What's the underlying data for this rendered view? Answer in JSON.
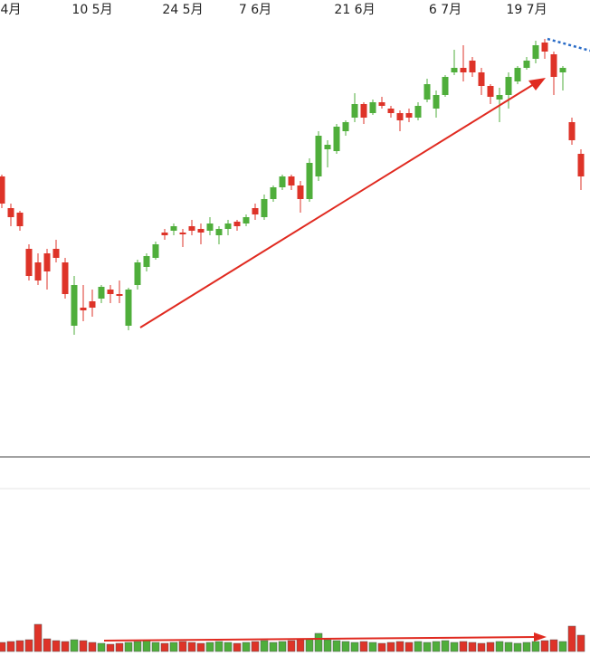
{
  "chart_data": {
    "type": "candlestick",
    "categories": [
      null,
      "4月",
      null,
      null,
      null,
      null,
      null,
      null,
      null,
      null,
      "10 5月",
      null,
      null,
      null,
      null,
      null,
      null,
      null,
      null,
      null,
      "24 5月",
      null,
      null,
      null,
      null,
      null,
      null,
      null,
      "7 6月",
      null,
      null,
      null,
      null,
      null,
      null,
      null,
      null,
      null,
      null,
      "21 6月",
      null,
      null,
      null,
      null,
      null,
      null,
      null,
      null,
      null,
      "6 7月",
      null,
      null,
      null,
      null,
      null,
      null,
      null,
      null,
      "19 7月",
      null,
      null,
      null,
      null,
      null,
      null
    ],
    "open": [
      310,
      275,
      270,
      230,
      215,
      225,
      230,
      215,
      145,
      165,
      172,
      175,
      185,
      180,
      145,
      190,
      210,
      220,
      248,
      250,
      248,
      255,
      252,
      250,
      245,
      252,
      260,
      258,
      275,
      265,
      285,
      298,
      310,
      300,
      285,
      310,
      340,
      338,
      360,
      375,
      390,
      380,
      392,
      385,
      380,
      380,
      375,
      395,
      385,
      400,
      425,
      430,
      438,
      425,
      410,
      395,
      400,
      415,
      430,
      440,
      458,
      445,
      425,
      370,
      335
    ],
    "high": [
      312,
      280,
      272,
      235,
      225,
      230,
      240,
      220,
      200,
      190,
      185,
      190,
      190,
      195,
      187,
      218,
      225,
      238,
      252,
      258,
      252,
      262,
      258,
      265,
      255,
      262,
      262,
      268,
      280,
      290,
      300,
      312,
      312,
      305,
      330,
      360,
      350,
      368,
      372,
      402,
      392,
      395,
      398,
      388,
      383,
      385,
      392,
      418,
      405,
      422,
      450,
      455,
      442,
      430,
      412,
      408,
      425,
      432,
      442,
      460,
      462,
      448,
      432,
      375,
      340
    ],
    "low": [
      275,
      255,
      250,
      195,
      190,
      185,
      215,
      175,
      135,
      150,
      155,
      170,
      170,
      170,
      140,
      185,
      205,
      218,
      240,
      245,
      232,
      245,
      235,
      245,
      235,
      245,
      250,
      255,
      262,
      262,
      282,
      295,
      295,
      270,
      282,
      305,
      320,
      335,
      355,
      370,
      368,
      378,
      385,
      375,
      360,
      370,
      372,
      392,
      375,
      398,
      422,
      415,
      420,
      400,
      390,
      370,
      385,
      412,
      428,
      435,
      440,
      400,
      405,
      345,
      295
    ],
    "close": [
      280,
      265,
      255,
      200,
      195,
      205,
      220,
      180,
      190,
      162,
      165,
      188,
      180,
      178,
      185,
      215,
      222,
      235,
      245,
      255,
      246,
      250,
      248,
      258,
      252,
      258,
      255,
      265,
      268,
      285,
      298,
      310,
      300,
      285,
      325,
      355,
      345,
      365,
      370,
      390,
      375,
      392,
      388,
      380,
      372,
      375,
      388,
      412,
      400,
      420,
      430,
      425,
      425,
      410,
      398,
      400,
      420,
      430,
      438,
      455,
      448,
      420,
      430,
      350,
      310
    ],
    "volume": [
      10,
      11,
      12,
      13,
      30,
      14,
      12,
      11,
      13,
      12,
      10,
      9,
      8,
      9,
      10,
      11,
      12,
      10,
      9,
      10,
      11,
      10,
      9,
      10,
      11,
      10,
      9,
      10,
      11,
      12,
      10,
      11,
      12,
      13,
      14,
      20,
      13,
      12,
      11,
      10,
      11,
      10,
      9,
      10,
      11,
      10,
      11,
      10,
      11,
      12,
      10,
      11,
      10,
      9,
      10,
      11,
      10,
      9,
      10,
      11,
      12,
      13,
      11,
      28,
      18
    ],
    "ylim": [
      0,
      500
    ],
    "volume_ylim": [
      0,
      40
    ],
    "up_color": "#4fae3b",
    "down_color": "#de3328"
  }
}
